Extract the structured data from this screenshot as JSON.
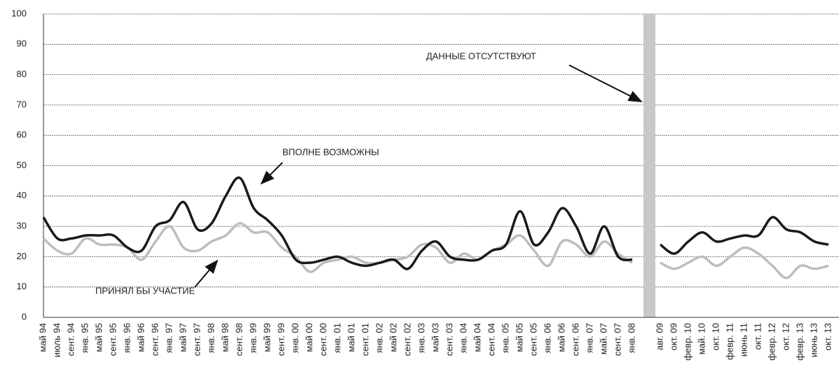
{
  "chart_data": {
    "type": "line",
    "categories": [
      "май 94",
      "июль 94",
      "сент. 94",
      "янв. 95",
      "май 95",
      "сент. 95",
      "янв. 96",
      "май 96",
      "сент. 96",
      "янв. 97",
      "май 97",
      "сент. 97",
      "янв. 98",
      "май 98",
      "сент. 98",
      "янв. 99",
      "май 99",
      "сент. 99",
      "янв. 00",
      "май 00",
      "сент. 00",
      "янв. 01",
      "май 01",
      "сент. 01",
      "янв. 02",
      "май 02",
      "сент. 02",
      "янв. 03",
      "май 03",
      "сент. 03",
      "янв. 04",
      "май 04",
      "сент. 04",
      "янв. 05",
      "май 05",
      "сент. 05",
      "янв. 06",
      "май 06",
      "сент. 06",
      "янв. 07",
      "май. 07",
      "сент. 07",
      "янв. 08",
      null,
      "авг. 09",
      "окт. 09",
      "февр. 10",
      "май. 10",
      "окт. 10",
      "февр. 11",
      "июнь 11",
      "окт. 11",
      "февр. 12",
      "окт. 12",
      "февр. 13",
      "июнь 13",
      "окт. 13"
    ],
    "series": [
      {
        "name": "ВПОЛНЕ ВОЗМОЖНЫ",
        "color": "#1a1a1a",
        "values": [
          33,
          26,
          26,
          27,
          27,
          27,
          23,
          22,
          30,
          32,
          38,
          29,
          31,
          40,
          46,
          36,
          32,
          27,
          19,
          18,
          19,
          20,
          18,
          17,
          18,
          19,
          16,
          22,
          25,
          20,
          19,
          19,
          22,
          24,
          35,
          24,
          28,
          36,
          30,
          21,
          30,
          20,
          19,
          null,
          24,
          21,
          25,
          28,
          25,
          26,
          27,
          27,
          33,
          29,
          28,
          25,
          24
        ]
      },
      {
        "name": "ПРИНЯЛ БЫ УЧАСТИЕ",
        "color": "#bdbdbd",
        "values": [
          26,
          22,
          21,
          26,
          24,
          24,
          23,
          19,
          25,
          30,
          23,
          22,
          25,
          27,
          31,
          28,
          28,
          23,
          20,
          15,
          18,
          19,
          20,
          18,
          18,
          19,
          20,
          24,
          23,
          18,
          21,
          19,
          22,
          24,
          27,
          22,
          17,
          25,
          24,
          20,
          25,
          21,
          18,
          null,
          18,
          16,
          18,
          20,
          17,
          20,
          23,
          21,
          17,
          13,
          17,
          16,
          17
        ]
      }
    ],
    "annotation": "ДАННЫЕ  ОТСУТСТВУЮТ",
    "ylim": [
      0,
      100
    ],
    "yticks": [
      0,
      10,
      20,
      30,
      40,
      50,
      60,
      70,
      80,
      90,
      100
    ],
    "grid": true
  }
}
